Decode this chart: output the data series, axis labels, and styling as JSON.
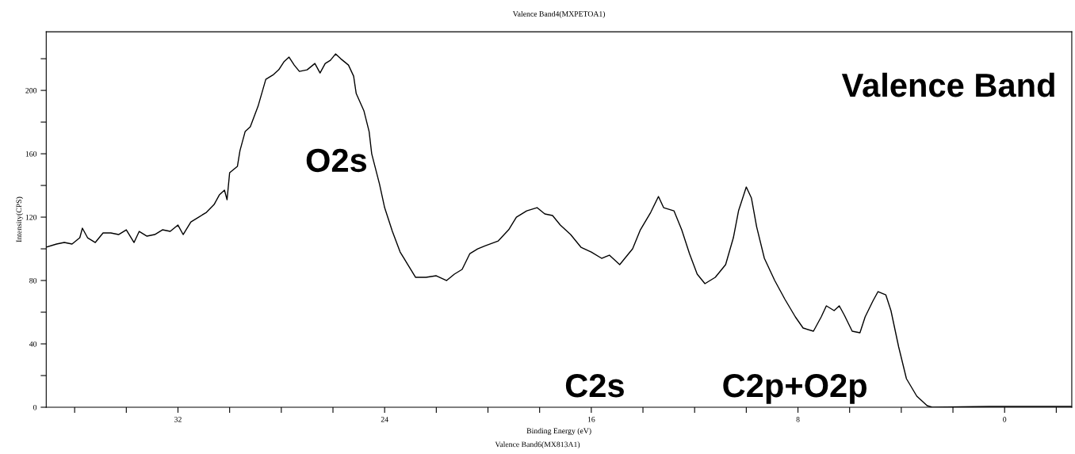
{
  "chart_data": {
    "type": "line",
    "title": "Valence Band4(MXPETOA1)",
    "xlabel": "Binding Energy (eV)",
    "ylabel": "Intensity(CPS)",
    "annotations": [
      "Valence Band",
      "O2s",
      "C2s",
      "C2p+O2p",
      "Valence Band6(MX813A1)"
    ],
    "xlim": [
      37.1,
      -2.6
    ],
    "ylim": [
      0,
      237
    ],
    "xticks": [
      {
        "value": 36,
        "label": null
      },
      {
        "value": 34,
        "label": null
      },
      32,
      {
        "value": 30,
        "label": null
      },
      {
        "value": 28,
        "label": null
      },
      {
        "value": 26,
        "label": null
      },
      24,
      {
        "value": 22,
        "label": null
      },
      {
        "value": 20,
        "label": null
      },
      {
        "value": 18,
        "label": null
      },
      16,
      {
        "value": 14,
        "label": null
      },
      {
        "value": 12,
        "label": null
      },
      {
        "value": 10,
        "label": null
      },
      8,
      {
        "value": 6,
        "label": null
      },
      {
        "value": 4,
        "label": null
      },
      {
        "value": 2,
        "label": null
      },
      0,
      {
        "value": -2,
        "label": null
      }
    ],
    "yticks": [
      0,
      {
        "value": 20,
        "label": null
      },
      40,
      {
        "value": 60,
        "label": null
      },
      80,
      {
        "value": 100,
        "label": null
      },
      120,
      {
        "value": 140,
        "label": null
      },
      160,
      {
        "value": 180,
        "label": null
      },
      200,
      {
        "value": 220,
        "label": null
      }
    ],
    "grid": false,
    "legend": false,
    "marker": "none",
    "line_style": "solid",
    "series": [
      {
        "color": "#000000",
        "x": [
          37.1,
          36.7,
          36.4,
          36.1,
          35.8,
          35.7,
          35.5,
          35.2,
          34.9,
          34.6,
          34.3,
          34.0,
          33.7,
          33.5,
          33.2,
          32.9,
          32.6,
          32.3,
          32.0,
          31.8,
          31.5,
          31.2,
          30.9,
          30.6,
          30.4,
          30.2,
          30.1,
          30.0,
          29.7,
          29.6,
          29.4,
          29.2,
          28.9,
          28.6,
          28.3,
          28.1,
          27.9,
          27.7,
          27.5,
          27.3,
          27.0,
          26.7,
          26.5,
          26.3,
          26.1,
          25.9,
          25.7,
          25.4,
          25.2,
          25.1,
          24.8,
          24.6,
          24.5,
          24.2,
          24.0,
          23.7,
          23.4,
          23.1,
          22.8,
          22.4,
          22.0,
          21.6,
          21.3,
          21.0,
          20.7,
          20.4,
          20.1,
          19.6,
          19.2,
          18.9,
          18.5,
          18.1,
          17.8,
          17.5,
          17.2,
          16.8,
          16.4,
          16.0,
          15.6,
          15.3,
          14.9,
          14.7,
          14.4,
          14.1,
          13.7,
          13.4,
          13.2,
          12.8,
          12.5,
          12.2,
          11.9,
          11.6,
          11.2,
          10.8,
          10.5,
          10.3,
          10.0,
          9.8,
          9.6,
          9.3,
          8.9,
          8.5,
          8.1,
          7.8,
          7.4,
          7.1,
          6.9,
          6.6,
          6.4,
          6.2,
          5.9,
          5.6,
          5.4,
          5.1,
          4.9,
          4.6,
          4.4,
          4.1,
          3.8,
          3.4,
          3.0,
          2.8,
          0.6,
          -2.6
        ],
        "values": [
          101,
          103,
          104,
          103,
          107,
          113,
          107,
          104,
          110,
          110,
          109,
          112,
          104,
          111,
          108,
          109,
          112,
          111,
          115,
          109,
          117,
          120,
          123,
          128,
          134,
          137,
          131,
          148,
          152,
          162,
          174,
          177,
          190,
          207,
          210,
          213,
          218,
          221,
          216,
          212,
          213,
          217,
          211,
          217,
          219,
          223,
          220,
          216,
          209,
          198,
          187,
          174,
          160,
          141,
          126,
          111,
          98,
          90,
          82,
          82,
          83,
          80,
          84,
          87,
          97,
          100,
          102,
          105,
          112,
          120,
          124,
          126,
          122,
          121,
          115,
          109,
          101,
          98,
          94,
          96,
          90,
          94,
          100,
          112,
          123,
          133,
          126,
          124,
          112,
          97,
          84,
          78,
          82,
          90,
          107,
          124,
          139,
          132,
          114,
          94,
          80,
          68,
          57,
          50,
          48,
          57,
          64,
          61,
          64,
          58,
          48,
          47,
          57,
          67,
          73,
          71,
          61,
          38,
          18,
          7,
          1,
          0,
          0.5,
          0.5
        ]
      }
    ]
  }
}
